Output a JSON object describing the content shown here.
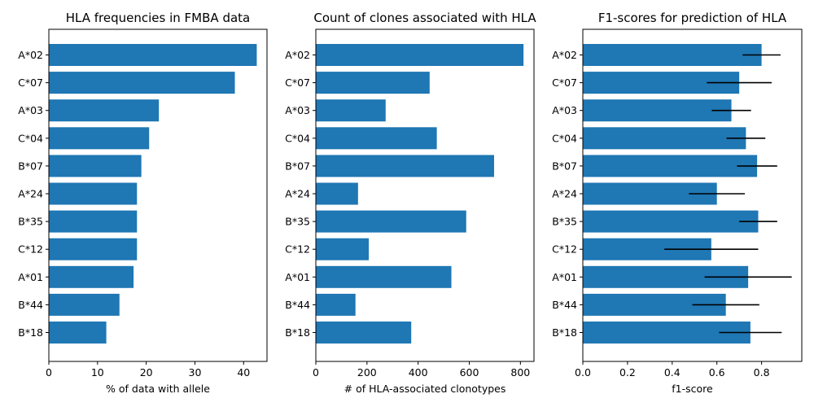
{
  "chart_data": [
    {
      "type": "bar",
      "orientation": "horizontal",
      "title": "HLA frequencies in FMBA data",
      "xlabel": "% of data with allele",
      "ylabel": "",
      "categories": [
        "A*02",
        "C*07",
        "A*03",
        "C*04",
        "B*07",
        "A*24",
        "B*35",
        "C*12",
        "A*01",
        "B*44",
        "B*18"
      ],
      "values": [
        42.7,
        38.2,
        22.6,
        20.6,
        19.0,
        18.1,
        18.1,
        18.1,
        17.4,
        14.5,
        11.8
      ],
      "xlim": [
        0,
        44.8
      ],
      "xticks": [
        0,
        10,
        20,
        30,
        40
      ],
      "grid": false,
      "color": "#1f77b4"
    },
    {
      "type": "bar",
      "orientation": "horizontal",
      "title": "Count of clones associated with HLA",
      "xlabel": "# of HLA-associated clonotypes",
      "ylabel": "",
      "categories": [
        "A*02",
        "C*07",
        "A*03",
        "C*04",
        "B*07",
        "A*24",
        "B*35",
        "C*12",
        "A*01",
        "B*44",
        "B*18"
      ],
      "values": [
        812,
        445,
        273,
        473,
        697,
        165,
        588,
        207,
        530,
        155,
        373
      ],
      "xlim": [
        0,
        853
      ],
      "xticks": [
        0,
        200,
        400,
        600,
        800
      ],
      "grid": false,
      "color": "#1f77b4"
    },
    {
      "type": "bar",
      "orientation": "horizontal",
      "title": "F1-scores for prediction of HLA",
      "xlabel": "f1-score",
      "ylabel": "",
      "categories": [
        "A*02",
        "C*07",
        "A*03",
        "C*04",
        "B*07",
        "A*24",
        "B*35",
        "C*12",
        "A*01",
        "B*44",
        "B*18"
      ],
      "values": [
        0.8,
        0.7,
        0.665,
        0.73,
        0.78,
        0.6,
        0.785,
        0.575,
        0.74,
        0.64,
        0.75
      ],
      "error": [
        0.085,
        0.145,
        0.088,
        0.087,
        0.09,
        0.125,
        0.085,
        0.21,
        0.195,
        0.15,
        0.14
      ],
      "xlim": [
        0,
        0.98
      ],
      "xticks": [
        "0.0",
        "0.2",
        "0.4",
        "0.6",
        "0.8"
      ],
      "grid": false,
      "color": "#1f77b4",
      "errorbar_color": "#000000"
    }
  ]
}
